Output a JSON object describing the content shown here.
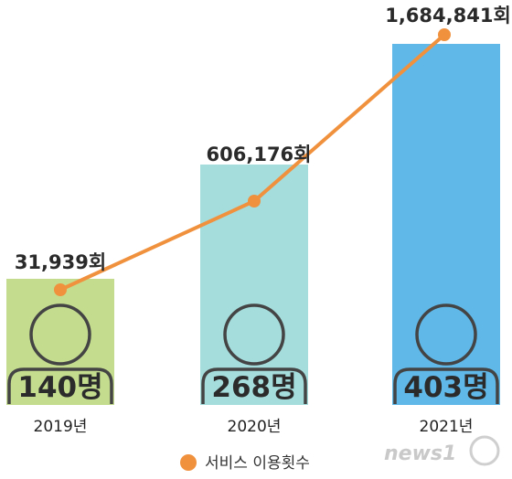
{
  "chart_data": {
    "type": "bar+line",
    "categories": [
      "2019년",
      "2020년",
      "2021년"
    ],
    "bar_labels": [
      "140명",
      "268명",
      "403명"
    ],
    "bar_colors": [
      "#c3dc8e",
      "#a5dcdc",
      "#5fb8e8"
    ],
    "line_series": {
      "name": "서비스 이용횟수",
      "values": [
        31939,
        606176,
        1684841
      ],
      "labels": [
        "31,939회",
        "606,176회",
        "1,684,841회"
      ],
      "color": "#f0913e"
    }
  },
  "watermark": "news1"
}
